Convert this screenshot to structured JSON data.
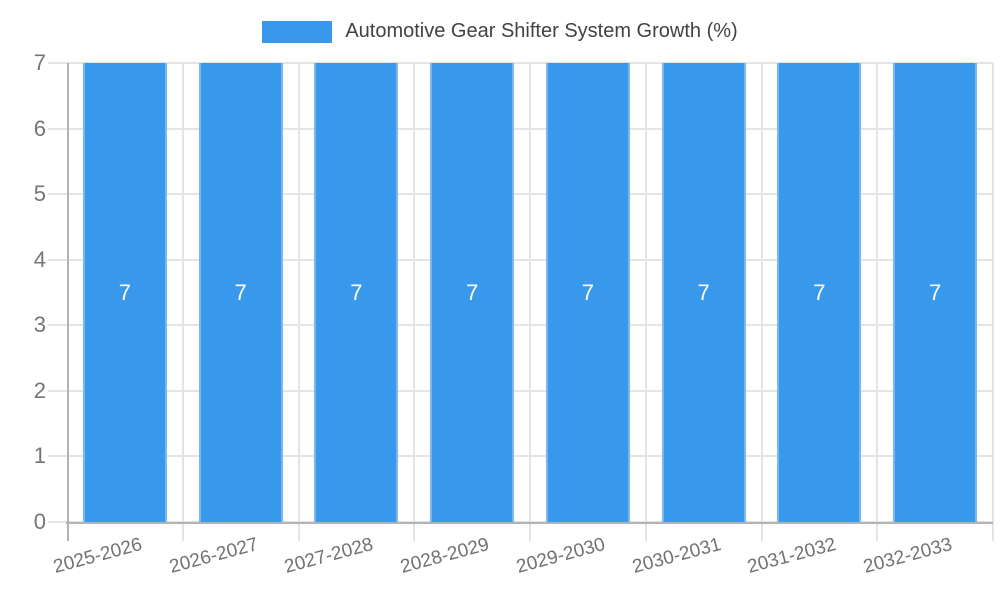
{
  "chart_data": {
    "type": "bar",
    "title": "Automotive Gear Shifter System Growth (%)",
    "categories": [
      "2025-2026",
      "2026-2027",
      "2027-2028",
      "2028-2029",
      "2029-2030",
      "2030-2031",
      "2031-2032",
      "2032-2033"
    ],
    "values": [
      7,
      7,
      7,
      7,
      7,
      7,
      7,
      7
    ],
    "value_labels": [
      "7",
      "7",
      "7",
      "7",
      "7",
      "7",
      "7",
      "7"
    ],
    "xlabel": "",
    "ylabel": "",
    "ylim": [
      0,
      7
    ],
    "yticks": [
      0,
      1,
      2,
      3,
      4,
      5,
      6,
      7
    ],
    "grid": true,
    "legend_position": "top-center",
    "colors": {
      "bar_fill": "#3898EC",
      "bar_edge": "#79B7F1",
      "grid_line": "#E4E4E4",
      "axis_line": "#B3B3B3",
      "tick_label": "#757575",
      "legend_text": "#424242",
      "value_label": "#FFFFFF",
      "background": "#FFFFFF"
    }
  }
}
